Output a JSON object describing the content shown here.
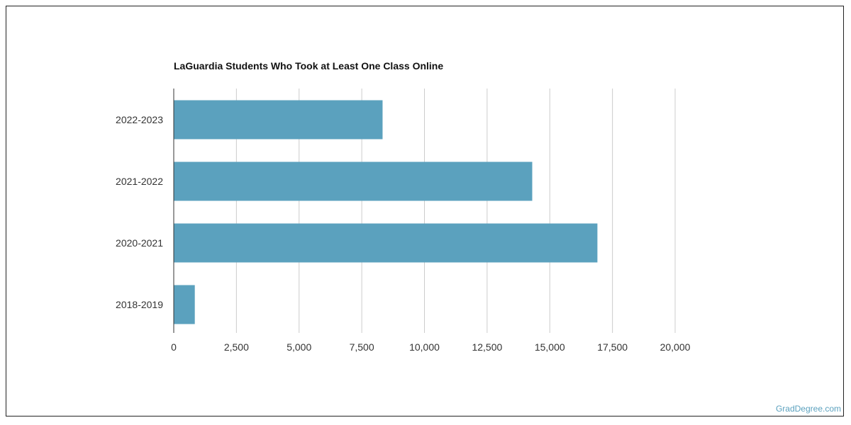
{
  "chart_data": {
    "type": "bar",
    "orientation": "horizontal",
    "title": "LaGuardia Students Who Took at Least One Class Online",
    "xlabel": "",
    "ylabel": "",
    "categories": [
      "2022-2023",
      "2021-2022",
      "2020-2021",
      "2018-2019"
    ],
    "values": [
      8330,
      14300,
      16900,
      840
    ],
    "xlim": [
      0,
      20000
    ],
    "xticks": [
      "0",
      "2,500",
      "5,000",
      "7,500",
      "10,000",
      "12,500",
      "15,000",
      "17,500",
      "20,000"
    ],
    "grid": "vertical",
    "bar_color": "#5ba1be"
  },
  "watermark": "GradDegree.com"
}
